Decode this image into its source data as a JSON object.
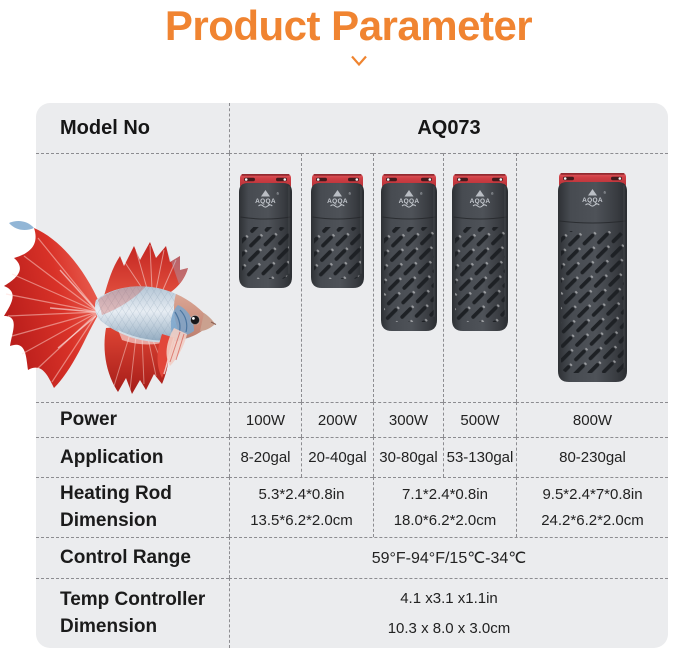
{
  "title": "Product Parameter",
  "brand": "AQQA",
  "colors": {
    "accent_orange": "#f08431",
    "card_background": "#ebecee",
    "heater_red": "#cf3e44",
    "heater_body": "#44484e"
  },
  "table": {
    "model": {
      "label": "Model No",
      "value": "AQ073"
    },
    "power": {
      "label": "Power",
      "values": [
        "100W",
        "200W",
        "300W",
        "500W",
        "800W"
      ]
    },
    "application": {
      "label": "Application",
      "values": [
        "8-20gal",
        "20-40gal",
        "30-80gal",
        "53-130gal",
        "80-230gal"
      ]
    },
    "heating_rod": {
      "label_line1": "Heating Rod",
      "label_line2": "Dimension",
      "dims": [
        {
          "in": "5.3*2.4*0.8in",
          "cm": "13.5*6.2*2.0cm"
        },
        {
          "in": "7.1*2.4*0.8in",
          "cm": "18.0*6.2*2.0cm"
        },
        {
          "in": "9.5*2.4*7*0.8in",
          "cm": "24.2*6.2*2.0cm"
        }
      ]
    },
    "control_range": {
      "label": "Control Range",
      "value": "59°F-94°F/15℃-34℃"
    },
    "temp_controller": {
      "label_line1": "Temp Controller",
      "label_line2": "Dimension",
      "value_in": "4.1 x3.1 x1.1in",
      "value_cm": "10.3 x 8.0 x 3.0cm"
    }
  }
}
